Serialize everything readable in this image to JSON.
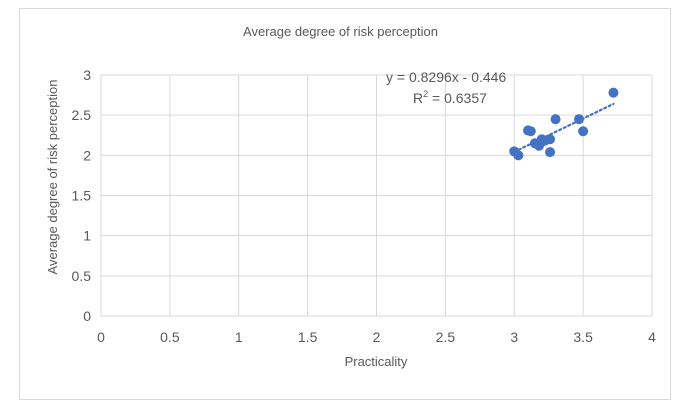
{
  "chart_data": {
    "type": "scatter",
    "title": "Average degree of risk perception",
    "xlabel": "Practicality",
    "ylabel": "Average degree of risk perception",
    "xlim": [
      0,
      4
    ],
    "ylim": [
      0,
      3
    ],
    "x_ticks": [
      "0",
      "0.5",
      "1",
      "1.5",
      "2",
      "2.5",
      "3",
      "3.5",
      "4"
    ],
    "y_ticks": [
      "0",
      "0.5",
      "1",
      "1.5",
      "2",
      "2.5",
      "3"
    ],
    "grid": "vertical and horizontal major gridlines",
    "marker_color": "#4472c4",
    "points": [
      {
        "x": 3.0,
        "y": 2.05
      },
      {
        "x": 3.03,
        "y": 2.0
      },
      {
        "x": 3.1,
        "y": 2.31
      },
      {
        "x": 3.12,
        "y": 2.3
      },
      {
        "x": 3.15,
        "y": 2.15
      },
      {
        "x": 3.18,
        "y": 2.12
      },
      {
        "x": 3.2,
        "y": 2.2
      },
      {
        "x": 3.22,
        "y": 2.18
      },
      {
        "x": 3.26,
        "y": 2.2
      },
      {
        "x": 3.26,
        "y": 2.04
      },
      {
        "x": 3.3,
        "y": 2.45
      },
      {
        "x": 3.47,
        "y": 2.45
      },
      {
        "x": 3.5,
        "y": 2.3
      },
      {
        "x": 3.72,
        "y": 2.78
      }
    ],
    "trendline": {
      "type": "linear",
      "style": "dotted",
      "slope": 0.8296,
      "intercept": -0.446,
      "x_range": [
        3.0,
        3.72
      ],
      "equation": "y = 0.8296x - 0.446",
      "r2_prefix": "R",
      "r2_sup": "2",
      "r2_value": " = 0.6357"
    }
  }
}
